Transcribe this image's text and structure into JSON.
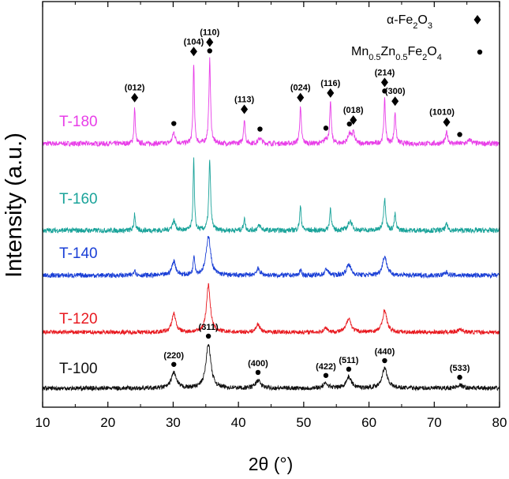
{
  "chart_data": {
    "type": "line",
    "title": "",
    "xlabel": "2θ (°)",
    "ylabel": "Intensity (a.u.)",
    "xlim": [
      10,
      80
    ],
    "xticks": [
      10,
      20,
      30,
      40,
      50,
      60,
      70,
      80
    ],
    "y_ticks_shown": false,
    "grid": false,
    "legend": {
      "placement": "top-right",
      "entries": [
        {
          "label_main": "α-Fe",
          "sub1": "2",
          "mid1": "O",
          "sub2": "3",
          "marker": "diamond"
        },
        {
          "label_main": "Mn",
          "sub1": "0.5",
          "mid1": "Zn",
          "sub2": "0.5",
          "mid2": "Fe",
          "sub3": "2",
          "mid3": "O",
          "sub4": "4",
          "marker": "circle"
        }
      ]
    },
    "series": [
      {
        "name": "T-180",
        "color": "#e83ee8",
        "noise": 3.2,
        "baseline": 0.0,
        "peaks": [
          [
            24.1,
            45,
            0.12
          ],
          [
            30.1,
            14,
            0.25
          ],
          [
            33.15,
            103,
            0.12
          ],
          [
            35.6,
            106,
            0.15
          ],
          [
            40.9,
            30,
            0.15
          ],
          [
            43.3,
            7,
            0.3
          ],
          [
            49.5,
            45,
            0.15
          ],
          [
            53.4,
            6,
            0.25
          ],
          [
            54.1,
            50,
            0.15
          ],
          [
            57.0,
            12,
            0.3
          ],
          [
            57.6,
            14,
            0.2
          ],
          [
            62.4,
            55,
            0.15
          ],
          [
            64.0,
            40,
            0.15
          ],
          [
            71.9,
            14,
            0.2
          ],
          [
            75.5,
            5,
            0.3
          ]
        ]
      },
      {
        "name": "T-160",
        "color": "#1aa39a",
        "noise": 3.2,
        "baseline": 0.0,
        "peaks": [
          [
            24.1,
            22,
            0.12
          ],
          [
            30.1,
            12,
            0.3
          ],
          [
            33.15,
            90,
            0.12
          ],
          [
            35.6,
            88,
            0.16
          ],
          [
            40.9,
            15,
            0.15
          ],
          [
            43.2,
            6,
            0.3
          ],
          [
            49.5,
            30,
            0.15
          ],
          [
            54.1,
            28,
            0.15
          ],
          [
            57.1,
            12,
            0.35
          ],
          [
            62.4,
            40,
            0.2
          ],
          [
            64.0,
            20,
            0.15
          ],
          [
            71.9,
            8,
            0.2
          ]
        ]
      },
      {
        "name": "T-140",
        "color": "#1a3fd6",
        "noise": 3.0,
        "baseline": 0.0,
        "peaks": [
          [
            24.1,
            8,
            0.15
          ],
          [
            30.1,
            18,
            0.35
          ],
          [
            33.2,
            25,
            0.15
          ],
          [
            35.4,
            50,
            0.4
          ],
          [
            43.0,
            8,
            0.35
          ],
          [
            49.5,
            6,
            0.2
          ],
          [
            53.5,
            8,
            0.3
          ],
          [
            56.9,
            14,
            0.4
          ],
          [
            62.4,
            24,
            0.4
          ],
          [
            71.9,
            4,
            0.3
          ]
        ]
      },
      {
        "name": "T-120",
        "color": "#e8191f",
        "noise": 2.6,
        "baseline": 0.0,
        "peaks": [
          [
            30.1,
            24,
            0.35
          ],
          [
            35.4,
            60,
            0.35
          ],
          [
            43.0,
            10,
            0.35
          ],
          [
            53.4,
            6,
            0.3
          ],
          [
            56.9,
            18,
            0.4
          ],
          [
            62.4,
            28,
            0.38
          ],
          [
            74.0,
            4,
            0.4
          ]
        ]
      },
      {
        "name": "T-100",
        "color": "#111111",
        "noise": 2.8,
        "baseline": 0.0,
        "peaks": [
          [
            30.1,
            20,
            0.45
          ],
          [
            35.4,
            56,
            0.45
          ],
          [
            43.0,
            10,
            0.45
          ],
          [
            53.4,
            6,
            0.45
          ],
          [
            56.9,
            14,
            0.5
          ],
          [
            62.4,
            25,
            0.5
          ],
          [
            73.9,
            4,
            0.5
          ]
        ]
      }
    ],
    "annotations": [
      {
        "text": "(012)",
        "x": 24.1,
        "series": "T-180",
        "marker": "diamond"
      },
      {
        "text": "(104)",
        "x": 33.15,
        "series": "T-180",
        "marker": "diamond"
      },
      {
        "text": "(110)",
        "x": 35.6,
        "series": "T-180",
        "marker": "diamond+circle"
      },
      {
        "text": "(113)",
        "x": 40.9,
        "series": "T-180",
        "marker": "diamond"
      },
      {
        "text": "(024)",
        "x": 49.5,
        "series": "T-180",
        "marker": "diamond"
      },
      {
        "text": "(116)",
        "x": 54.1,
        "series": "T-180",
        "marker": "diamond"
      },
      {
        "text": "(018)",
        "x": 57.6,
        "series": "T-180",
        "marker": "diamond"
      },
      {
        "text": "(214)",
        "x": 62.4,
        "series": "T-180",
        "marker": "diamond+circle"
      },
      {
        "text": "(300)",
        "x": 64.0,
        "series": "T-180",
        "marker": "diamond"
      },
      {
        "text": "(1010)",
        "x": 71.9,
        "series": "T-180",
        "marker": "diamond"
      },
      {
        "text": "(220)",
        "x": 30.1,
        "series": "T-100",
        "marker": "circle"
      },
      {
        "text": "(311)",
        "x": 35.4,
        "series": "T-100",
        "marker": "circle"
      },
      {
        "text": "(400)",
        "x": 43.0,
        "series": "T-100",
        "marker": "circle"
      },
      {
        "text": "(422)",
        "x": 53.4,
        "series": "T-100",
        "marker": "circle"
      },
      {
        "text": "(511)",
        "x": 56.9,
        "series": "T-100",
        "marker": "circle"
      },
      {
        "text": "(440)",
        "x": 62.4,
        "series": "T-100",
        "marker": "circle"
      },
      {
        "text": "(533)",
        "x": 73.9,
        "series": "T-100",
        "marker": "circle"
      }
    ],
    "extra_markers": [
      {
        "x": 30.1,
        "series": "T-180",
        "marker": "circle"
      },
      {
        "x": 43.3,
        "series": "T-180",
        "marker": "circle"
      },
      {
        "x": 53.4,
        "series": "T-180",
        "marker": "circle"
      },
      {
        "x": 57.0,
        "series": "T-180",
        "marker": "circle"
      },
      {
        "x": 73.9,
        "series": "T-180",
        "marker": "circle"
      }
    ]
  }
}
